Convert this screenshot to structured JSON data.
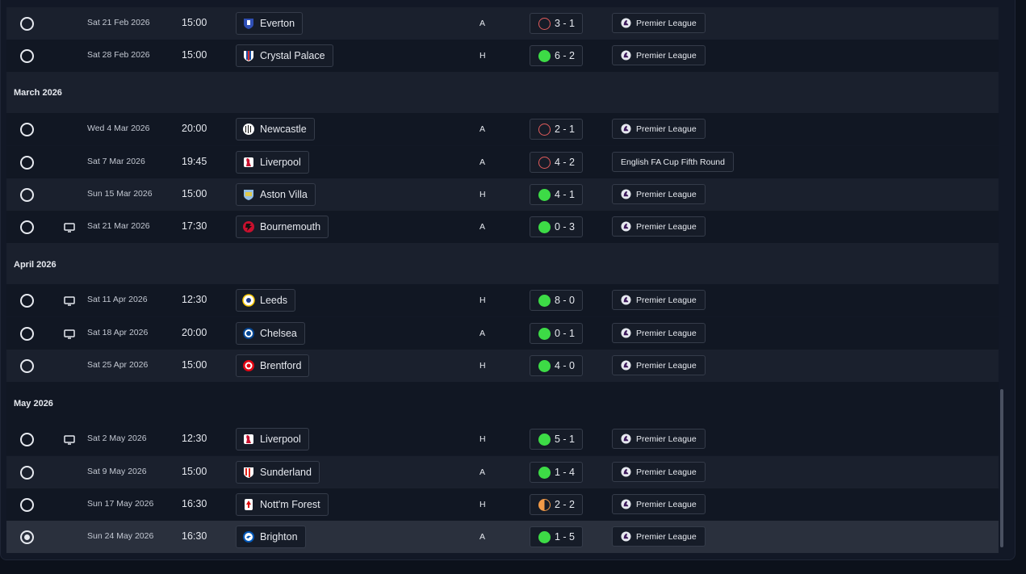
{
  "months": [
    {
      "label": "March 2026"
    },
    {
      "label": "April 2026"
    },
    {
      "label": "May 2026"
    }
  ],
  "fixtures": [
    {
      "date": "Sat 21 Feb 2026",
      "time": "15:00",
      "team": "Everton",
      "crest": "everton",
      "venue": "A",
      "outcome": "loss",
      "score": "3 - 1",
      "competition": "Premier League",
      "comp_logo": true,
      "tv": false,
      "selected": false
    },
    {
      "date": "Sat 28 Feb 2026",
      "time": "15:00",
      "team": "Crystal Palace",
      "crest": "palace",
      "venue": "H",
      "outcome": "win",
      "score": "6 - 2",
      "competition": "Premier League",
      "comp_logo": true,
      "tv": false,
      "selected": false
    },
    {
      "date": "Wed 4 Mar 2026",
      "time": "20:00",
      "team": "Newcastle",
      "crest": "newcastle",
      "venue": "A",
      "outcome": "loss",
      "score": "2 - 1",
      "competition": "Premier League",
      "comp_logo": true,
      "tv": false,
      "selected": false
    },
    {
      "date": "Sat 7 Mar 2026",
      "time": "19:45",
      "team": "Liverpool",
      "crest": "liverpool",
      "venue": "A",
      "outcome": "loss",
      "score": "4 - 2",
      "competition": "English FA Cup Fifth Round",
      "comp_logo": false,
      "tv": false,
      "selected": false
    },
    {
      "date": "Sun 15 Mar 2026",
      "time": "15:00",
      "team": "Aston Villa",
      "crest": "villa",
      "venue": "H",
      "outcome": "win",
      "score": "4 - 1",
      "competition": "Premier League",
      "comp_logo": true,
      "tv": false,
      "selected": false
    },
    {
      "date": "Sat 21 Mar 2026",
      "time": "17:30",
      "team": "Bournemouth",
      "crest": "bournemouth",
      "venue": "A",
      "outcome": "win",
      "score": "0 - 3",
      "competition": "Premier League",
      "comp_logo": true,
      "tv": true,
      "selected": false
    },
    {
      "date": "Sat 11 Apr 2026",
      "time": "12:30",
      "team": "Leeds",
      "crest": "leeds",
      "venue": "H",
      "outcome": "win",
      "score": "8 - 0",
      "competition": "Premier League",
      "comp_logo": true,
      "tv": true,
      "selected": false
    },
    {
      "date": "Sat 18 Apr 2026",
      "time": "20:00",
      "team": "Chelsea",
      "crest": "chelsea",
      "venue": "A",
      "outcome": "win",
      "score": "0 - 1",
      "competition": "Premier League",
      "comp_logo": true,
      "tv": true,
      "selected": false
    },
    {
      "date": "Sat 25 Apr 2026",
      "time": "15:00",
      "team": "Brentford",
      "crest": "brentford",
      "venue": "H",
      "outcome": "win",
      "score": "4 - 0",
      "competition": "Premier League",
      "comp_logo": true,
      "tv": false,
      "selected": false
    },
    {
      "date": "Sat 2 May 2026",
      "time": "12:30",
      "team": "Liverpool",
      "crest": "liverpool",
      "venue": "H",
      "outcome": "win",
      "score": "5 - 1",
      "competition": "Premier League",
      "comp_logo": true,
      "tv": true,
      "selected": false
    },
    {
      "date": "Sat 9 May 2026",
      "time": "15:00",
      "team": "Sunderland",
      "crest": "sunderland",
      "venue": "A",
      "outcome": "win",
      "score": "1 - 4",
      "competition": "Premier League",
      "comp_logo": true,
      "tv": false,
      "selected": false
    },
    {
      "date": "Sun 17 May 2026",
      "time": "16:30",
      "team": "Nott'm Forest",
      "crest": "forest",
      "venue": "H",
      "outcome": "draw",
      "score": "2 - 2",
      "competition": "Premier League",
      "comp_logo": true,
      "tv": false,
      "selected": false
    },
    {
      "date": "Sun 24 May 2026",
      "time": "16:30",
      "team": "Brighton",
      "crest": "brighton",
      "venue": "A",
      "outcome": "win",
      "score": "1 - 5",
      "competition": "Premier League",
      "comp_logo": true,
      "tv": false,
      "selected": true
    }
  ],
  "colors": {
    "win": "#3ddb46",
    "loss": "#e05b5b",
    "draw": "#f29a47"
  }
}
